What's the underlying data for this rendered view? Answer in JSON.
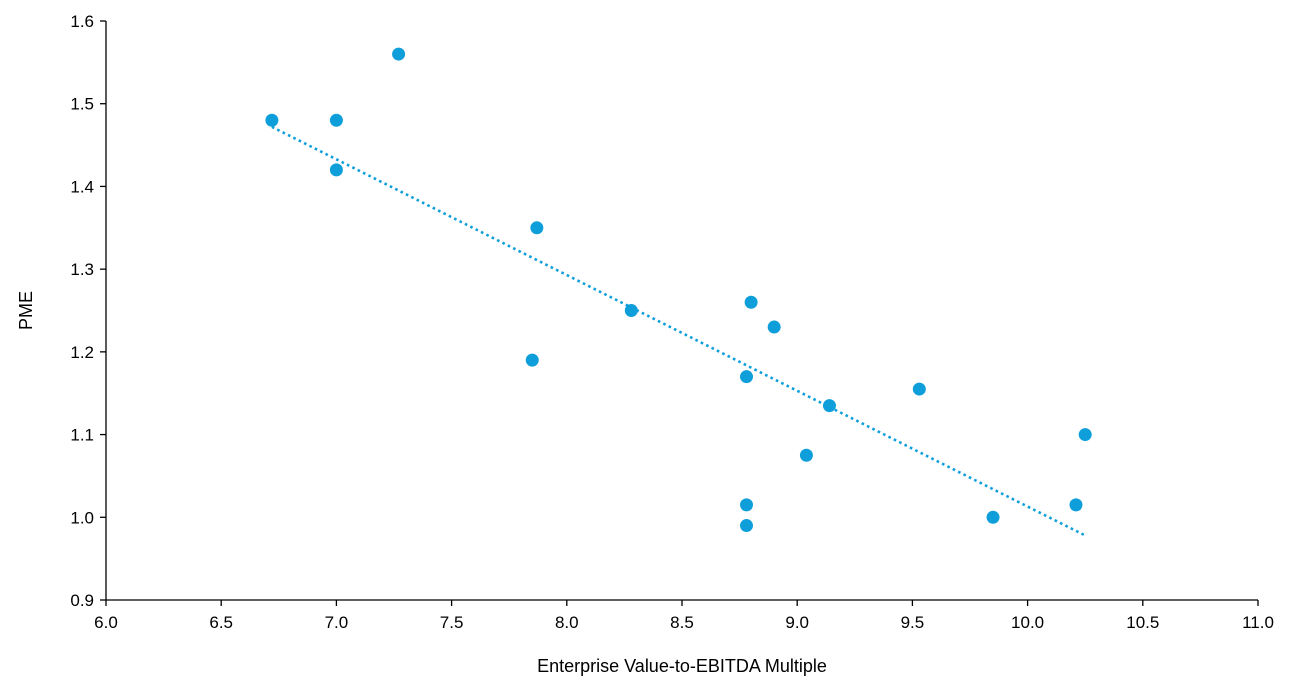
{
  "chart_data": {
    "type": "scatter",
    "title": "",
    "xlabel": "Enterprise Value-to-EBITDA Multiple",
    "ylabel": "PME",
    "xlim": [
      6.0,
      11.0
    ],
    "ylim": [
      0.9,
      1.6
    ],
    "x_ticks": [
      "6.0",
      "6.5",
      "7.0",
      "7.5",
      "8.0",
      "8.5",
      "9.0",
      "9.5",
      "10.0",
      "10.5",
      "11.0"
    ],
    "y_ticks": [
      "0.9",
      "1.0",
      "1.1",
      "1.2",
      "1.3",
      "1.4",
      "1.5",
      "1.6"
    ],
    "grid": false,
    "legend": "none",
    "marker_color": "#0E9FDB",
    "series": [
      {
        "points": [
          {
            "x": 6.72,
            "y": 1.48
          },
          {
            "x": 7.0,
            "y": 1.48
          },
          {
            "x": 7.0,
            "y": 1.42
          },
          {
            "x": 7.27,
            "y": 1.56
          },
          {
            "x": 7.85,
            "y": 1.19
          },
          {
            "x": 7.87,
            "y": 1.35
          },
          {
            "x": 8.28,
            "y": 1.25
          },
          {
            "x": 8.78,
            "y": 1.17
          },
          {
            "x": 8.78,
            "y": 1.015
          },
          {
            "x": 8.78,
            "y": 0.99
          },
          {
            "x": 8.8,
            "y": 1.26
          },
          {
            "x": 8.9,
            "y": 1.23
          },
          {
            "x": 9.04,
            "y": 1.075
          },
          {
            "x": 9.14,
            "y": 1.135
          },
          {
            "x": 9.53,
            "y": 1.155
          },
          {
            "x": 9.85,
            "y": 1.0
          },
          {
            "x": 10.21,
            "y": 1.015
          },
          {
            "x": 10.25,
            "y": 1.1
          }
        ]
      }
    ],
    "trendline": {
      "type": "linear",
      "style": "dotted",
      "x": [
        6.72,
        10.25
      ],
      "y": [
        1.472,
        0.978
      ]
    }
  }
}
